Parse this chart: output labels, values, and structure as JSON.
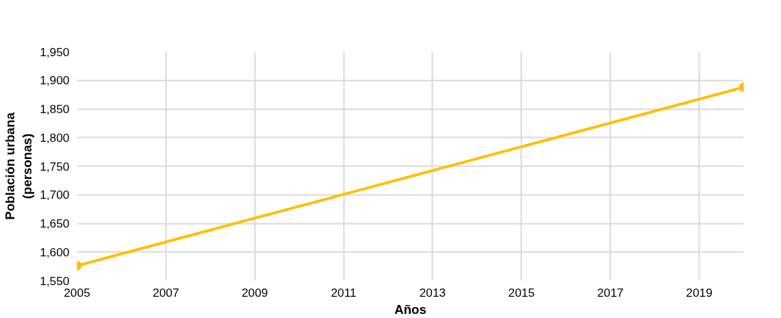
{
  "chart_data": {
    "type": "line",
    "xlabel": "Años",
    "ylabel": "Población urbana\n(personas)",
    "x": [
      2005,
      2020
    ],
    "series": [
      {
        "color": "#ffc000",
        "values": [
          1576,
          1888
        ]
      }
    ],
    "xlim": [
      2005,
      2020
    ],
    "xticks": [
      2005,
      2007,
      2009,
      2011,
      2013,
      2015,
      2017,
      2019
    ],
    "ylim": [
      1550,
      1950
    ],
    "yticks": [
      {
        "value": 1550,
        "label": "1,550"
      },
      {
        "value": 1600,
        "label": "1,600"
      },
      {
        "value": 1650,
        "label": "1,650"
      },
      {
        "value": 1700,
        "label": "1,700"
      },
      {
        "value": 1750,
        "label": "1,750"
      },
      {
        "value": 1800,
        "label": "1,800"
      },
      {
        "value": 1850,
        "label": "1,850"
      },
      {
        "value": 1900,
        "label": "1,900"
      },
      {
        "value": 1950,
        "label": "1,950"
      }
    ],
    "grid": true,
    "marker": "circle",
    "line_style": "solid"
  }
}
